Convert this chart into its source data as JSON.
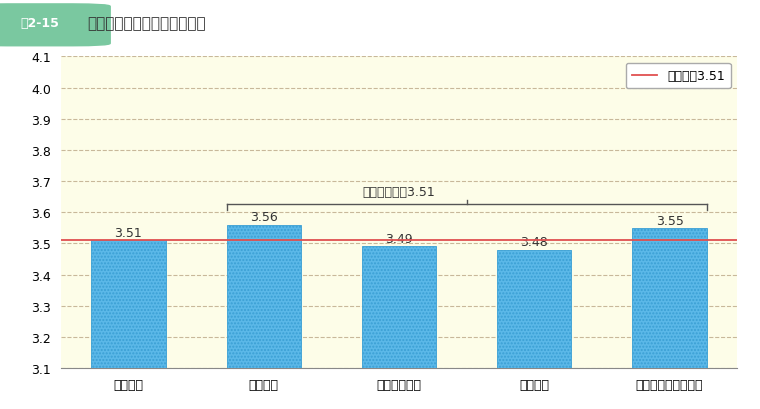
{
  "categories": [
    "本府省庁",
    "管区機関",
    "府県単位機関",
    "出先機関",
    "施設等機関・その他"
  ],
  "values": [
    3.51,
    3.56,
    3.49,
    3.48,
    3.55
  ],
  "bar_color": "#5bb8e8",
  "ylim": [
    3.1,
    4.1
  ],
  "yticks": [
    3.1,
    3.2,
    3.3,
    3.4,
    3.5,
    3.6,
    3.7,
    3.8,
    3.9,
    4.0,
    4.1
  ],
  "avg_line": 3.51,
  "avg_label": "総平均値3.51",
  "bracket_label": "本府省庁以兤3.51",
  "background_color": "#fdfde8",
  "grid_color": "#c8b89a",
  "avg_line_color": "#e05050",
  "title_box_text": "囲2-15",
  "title_text": "勤務機関区分の回答の平均値"
}
